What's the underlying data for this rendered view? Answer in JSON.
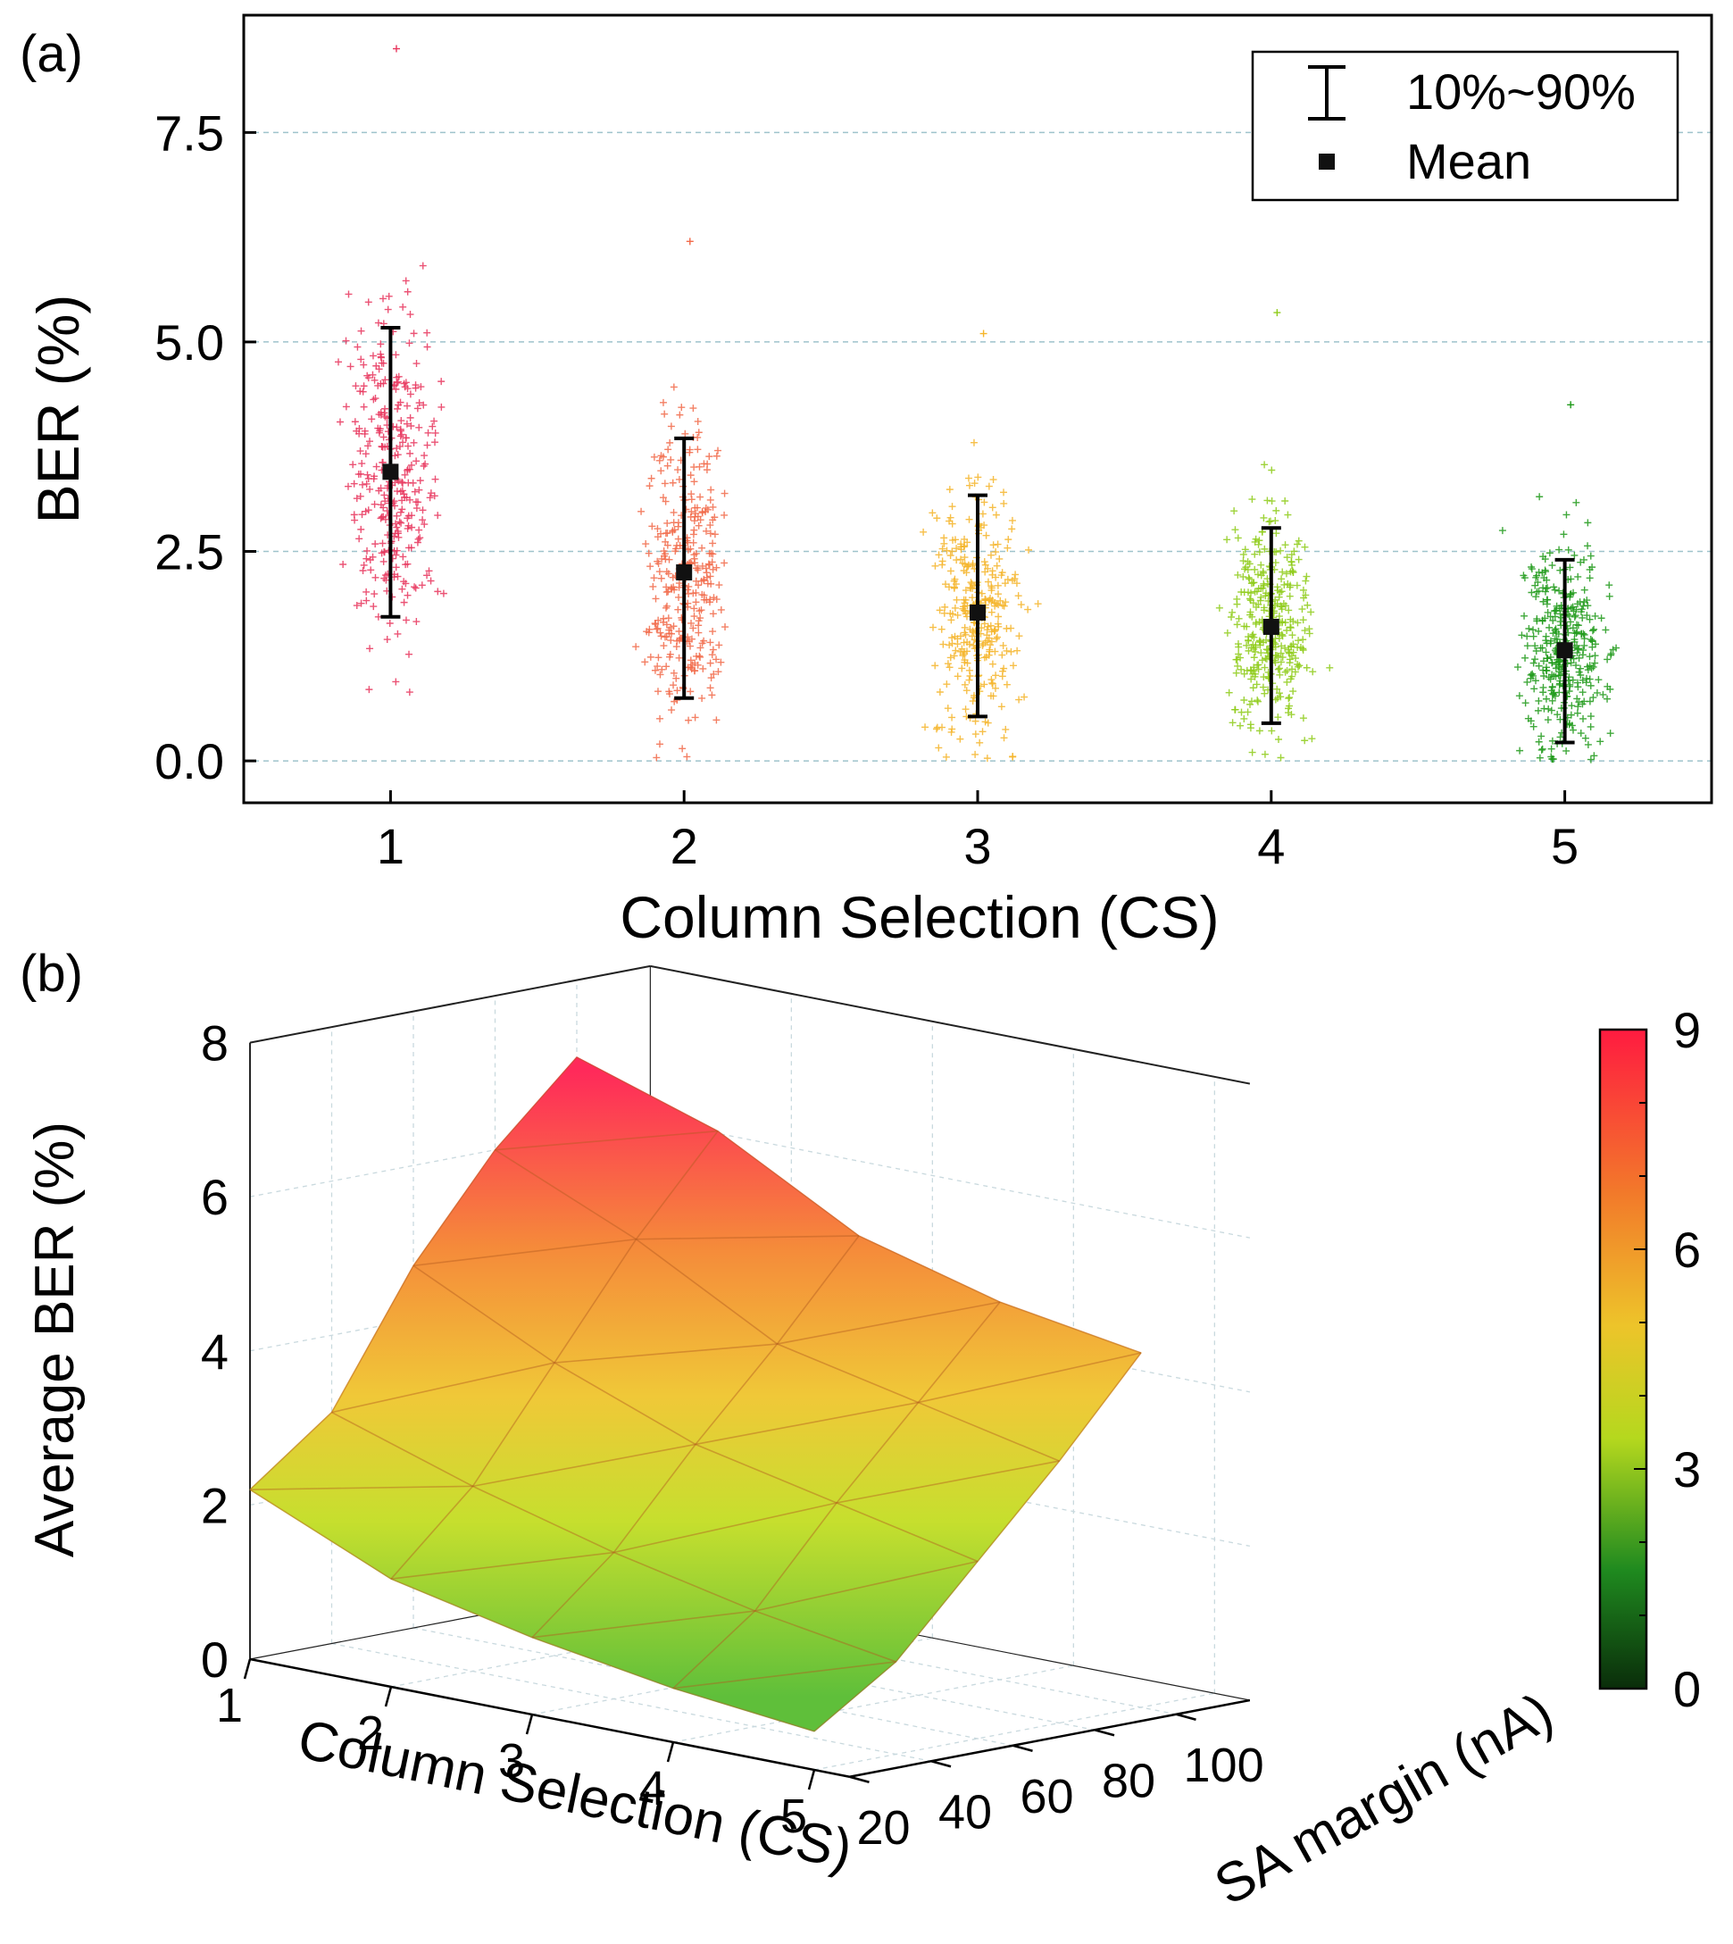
{
  "chart_data": [
    {
      "panel_label": "(a)",
      "type": "scatter",
      "xlabel": "Column Selection (CS)",
      "ylabel": "BER (%)",
      "xlim": [
        0.5,
        5.5
      ],
      "ylim": [
        -0.5,
        8.9
      ],
      "xticks": [
        1,
        2,
        3,
        4,
        5
      ],
      "yticks": [
        0.0,
        2.5,
        5.0,
        7.5
      ],
      "ytick_labels": [
        "0.0",
        "2.5",
        "5.0",
        "7.5"
      ],
      "grid": "horizontal dashed",
      "legend": {
        "position": "top-right",
        "items": [
          {
            "label": "10%~90%",
            "marker": "errorbar"
          },
          {
            "label": "Mean",
            "marker": "square"
          }
        ]
      },
      "series": [
        {
          "x": 1,
          "mean": 3.45,
          "p10": 1.72,
          "p90": 5.17,
          "color": "#e8365d",
          "count": 320,
          "spread": 1.38,
          "max_outlier": 8.5
        },
        {
          "x": 2,
          "mean": 2.25,
          "p10": 0.75,
          "p90": 3.85,
          "color": "#f26a4a",
          "count": 320,
          "spread": 1.22,
          "max_outlier": 6.2
        },
        {
          "x": 3,
          "mean": 1.77,
          "p10": 0.53,
          "p90": 3.17,
          "color": "#f5b52a",
          "count": 320,
          "spread": 1.08,
          "max_outlier": 5.1
        },
        {
          "x": 4,
          "mean": 1.6,
          "p10": 0.45,
          "p90": 2.78,
          "color": "#8fcc1a",
          "count": 340,
          "spread": 0.95,
          "max_outlier": 5.35
        },
        {
          "x": 5,
          "mean": 1.32,
          "p10": 0.22,
          "p90": 2.4,
          "color": "#1f9a1a",
          "count": 360,
          "spread": 0.85,
          "max_outlier": 4.25
        }
      ]
    },
    {
      "panel_label": "(b)",
      "type": "surface3d",
      "xlabel": "Column Selection (CS)",
      "ylabel": "SA margin (nA)",
      "zlabel": "Average BER (%)",
      "x_values": [
        1,
        2,
        3,
        4,
        5
      ],
      "y_values": [
        20,
        40,
        60,
        80,
        100
      ],
      "zlim": [
        0,
        8
      ],
      "zticks": [
        0,
        2,
        4,
        6,
        8
      ],
      "z_grid": [
        [
          2.2,
          3.0,
          4.7,
          6.0,
          7.0
        ],
        [
          1.4,
          2.4,
          3.8,
          5.2,
          6.4
        ],
        [
          1.0,
          1.9,
          3.1,
          4.2,
          5.4
        ],
        [
          0.7,
          1.5,
          2.7,
          3.8,
          4.9
        ],
        [
          0.5,
          1.2,
          2.3,
          3.4,
          4.6
        ]
      ],
      "colorbar": {
        "min": 0,
        "max": 9,
        "ticks": [
          0,
          3,
          6,
          9
        ],
        "colors": [
          "#0d3d0d",
          "#1f8f1f",
          "#c8dc1e",
          "#f0b428",
          "#f26a2a",
          "#ff1b40"
        ]
      }
    }
  ]
}
